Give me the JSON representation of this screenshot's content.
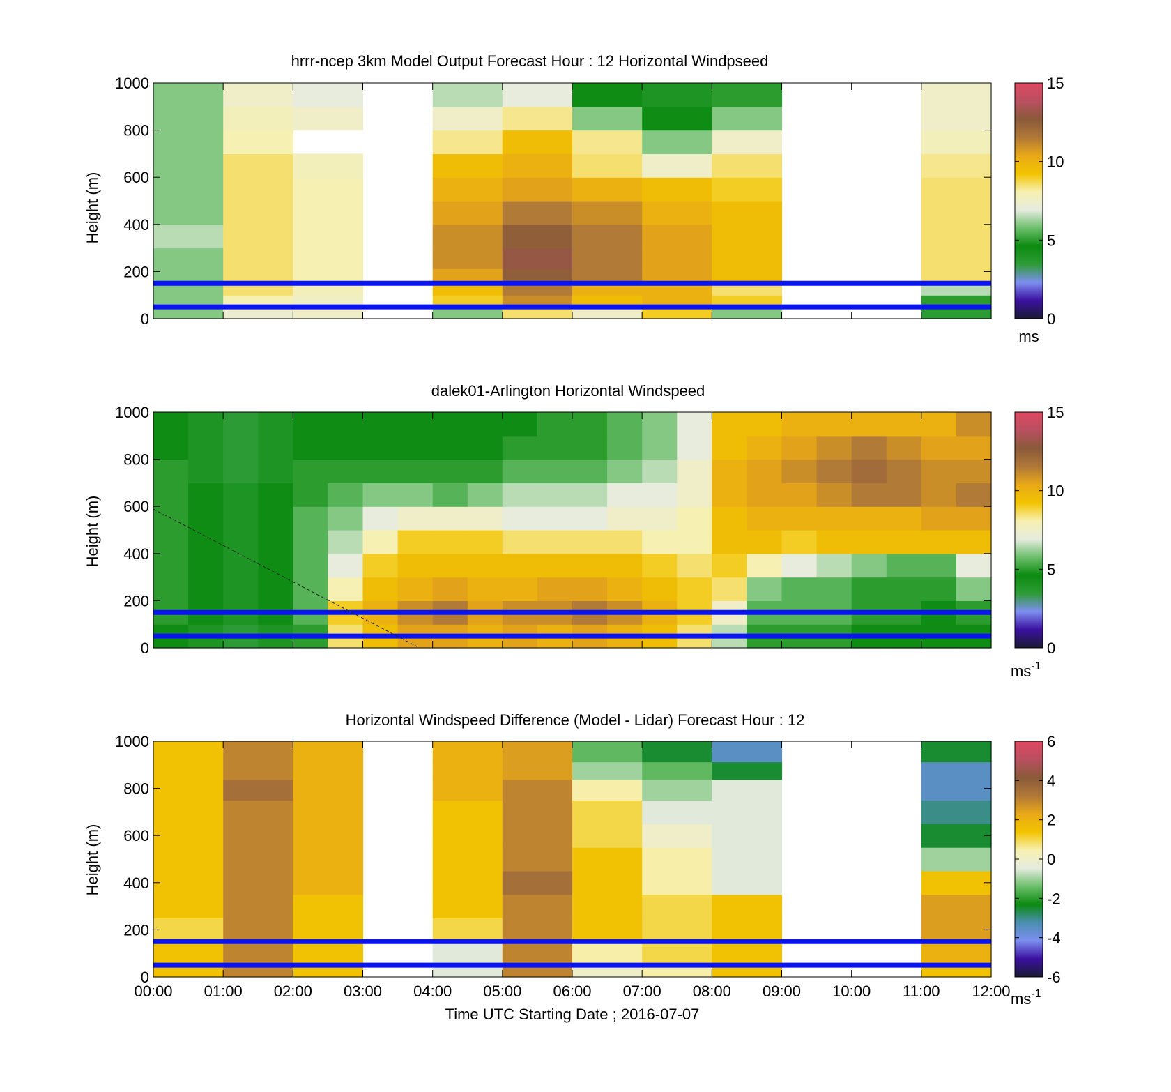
{
  "figure": {
    "xlabel": "Time UTC  Starting Date ; 2016-07-07",
    "x_tick_labels": [
      "00:00",
      "01:00",
      "02:00",
      "03:00",
      "04:00",
      "05:00",
      "06:00",
      "07:00",
      "08:00",
      "09:00",
      "10:00",
      "11:00",
      "12:00"
    ],
    "y_tick_labels": [
      "0",
      "200",
      "400",
      "600",
      "800",
      "1000"
    ],
    "ylabel": "Height (m)",
    "colors": {
      "reference_lines": "#0a14f0",
      "speed_colormap": [
        "#1a1a33",
        "#3a10a0",
        "#7d8ff0",
        "#2e9c36",
        "#0c8a10",
        "#6cbf6c",
        "#e6ecdf",
        "#f7f0b0",
        "#f2c400",
        "#e8a818",
        "#b07838",
        "#8a5a3a",
        "#b85060",
        "#e04860"
      ],
      "diff_colormap": [
        "#1a1a33",
        "#3a10a0",
        "#7d8ff0",
        "#4a8fb0",
        "#0c8a10",
        "#6cbf6c",
        "#e6ecdf",
        "#f7f0b0",
        "#f2c400",
        "#e8a818",
        "#b07838",
        "#8a5a3a",
        "#b85060",
        "#e04860"
      ]
    }
  },
  "chart_data": [
    {
      "type": "heatmap",
      "title": "hrrr-ncep 3km Model Output   Forecast Hour : 12 Horizontal Windpseed",
      "xlabel": "",
      "ylabel": "Height (m)",
      "ylim": [
        0,
        1000
      ],
      "xlim_hours": [
        0,
        12
      ],
      "colorbar": {
        "range": [
          0,
          15
        ],
        "ticks": [
          "0",
          "5",
          "10",
          "15"
        ],
        "unit": "ms"
      },
      "reference_lines_m": [
        50,
        150
      ],
      "x_hours": [
        0.5,
        1.5,
        2.5,
        3.5,
        4.5,
        5.5,
        6.5,
        7.5,
        8.5,
        9.5,
        10.5,
        11.5
      ],
      "heights_m": [
        25,
        75,
        125,
        175,
        250,
        350,
        450,
        550,
        650,
        750,
        850,
        950
      ],
      "values_ms": [
        [
          6.0,
          7.3,
          7.5,
          null,
          6.0,
          8.5,
          7.5,
          9.0,
          6.0,
          null,
          null,
          3.5
        ],
        [
          6.0,
          8.0,
          7.6,
          null,
          9.0,
          11.0,
          9.5,
          10.0,
          9.0,
          null,
          null,
          5.0
        ],
        [
          6.0,
          8.5,
          7.8,
          null,
          9.5,
          11.5,
          10.0,
          10.0,
          8.5,
          null,
          null,
          6.5
        ],
        [
          6.0,
          8.5,
          8.0,
          null,
          10.5,
          12.5,
          11.5,
          10.5,
          9.5,
          null,
          null,
          8.5
        ],
        [
          6.0,
          8.5,
          8.0,
          null,
          11.0,
          13.0,
          11.5,
          10.5,
          9.5,
          null,
          null,
          8.5
        ],
        [
          6.5,
          8.5,
          8.0,
          null,
          11.0,
          12.5,
          11.5,
          10.5,
          9.5,
          null,
          null,
          8.5
        ],
        [
          6.0,
          8.5,
          8.0,
          null,
          10.5,
          11.5,
          11.0,
          10.0,
          9.5,
          null,
          null,
          8.5
        ],
        [
          6.0,
          8.5,
          8.0,
          null,
          10.0,
          10.5,
          10.0,
          9.5,
          9.0,
          null,
          null,
          8.5
        ],
        [
          6.0,
          8.5,
          7.8,
          null,
          9.5,
          10.0,
          8.5,
          7.5,
          8.5,
          null,
          null,
          8.3
        ],
        [
          6.0,
          8.0,
          null,
          null,
          8.3,
          9.5,
          8.3,
          6.0,
          7.5,
          null,
          null,
          7.8
        ],
        [
          6.0,
          7.8,
          7.5,
          null,
          7.5,
          8.3,
          6.0,
          4.5,
          6.0,
          null,
          null,
          7.5
        ],
        [
          6.0,
          7.5,
          7.0,
          null,
          6.5,
          7.0,
          4.5,
          4.0,
          5.0,
          null,
          null,
          7.5
        ]
      ]
    },
    {
      "type": "heatmap",
      "title": "dalek01-Arlington  Horizontal Windspeed",
      "xlabel": "",
      "ylabel": "Height (m)",
      "ylim": [
        0,
        1000
      ],
      "xlim_hours": [
        0,
        12
      ],
      "colorbar": {
        "range": [
          0,
          15
        ],
        "ticks": [
          "0",
          "5",
          "10",
          "15"
        ],
        "unit": "ms",
        "unit_exponent": "-1"
      },
      "reference_lines_m": [
        50,
        150
      ],
      "x_hours": [
        0.25,
        0.75,
        1.25,
        1.75,
        2.25,
        2.75,
        3.25,
        3.75,
        4.25,
        4.75,
        5.25,
        5.75,
        6.25,
        6.75,
        7.25,
        7.75,
        8.25,
        8.75,
        9.25,
        9.75,
        10.25,
        10.75,
        11.25,
        11.75
      ],
      "heights_m": [
        50,
        150,
        250,
        350,
        450,
        550,
        650,
        750,
        850,
        950
      ],
      "values_ms": [
        [
          4.5,
          4.0,
          3.5,
          4.0,
          5.0,
          8.5,
          9.5,
          10.5,
          10.5,
          10.0,
          10.5,
          10.0,
          10.5,
          10.0,
          9.5,
          8.5,
          6.5,
          5.0,
          5.0,
          5.0,
          4.5,
          4.5,
          4.5,
          4.5
        ],
        [
          5.0,
          4.5,
          4.0,
          4.5,
          5.5,
          9.0,
          10.0,
          11.0,
          11.5,
          10.5,
          11.0,
          11.0,
          11.5,
          11.0,
          10.0,
          9.0,
          7.5,
          5.5,
          5.5,
          5.5,
          5.0,
          5.0,
          4.5,
          5.0
        ],
        [
          5.0,
          4.5,
          4.0,
          4.5,
          5.5,
          8.0,
          9.5,
          10.0,
          10.5,
          10.0,
          10.0,
          10.5,
          10.5,
          10.0,
          9.5,
          9.0,
          8.5,
          6.0,
          5.5,
          5.5,
          5.0,
          5.0,
          5.0,
          6.0
        ],
        [
          5.0,
          4.5,
          4.0,
          4.5,
          5.5,
          7.0,
          9.0,
          9.5,
          9.5,
          9.5,
          9.5,
          9.5,
          9.5,
          9.5,
          9.0,
          8.5,
          9.0,
          8.0,
          7.0,
          6.5,
          6.0,
          5.5,
          5.5,
          7.0
        ],
        [
          5.0,
          4.5,
          4.0,
          4.5,
          5.5,
          6.5,
          8.0,
          9.0,
          9.0,
          9.0,
          8.5,
          8.5,
          8.5,
          8.5,
          8.0,
          8.0,
          9.5,
          9.5,
          9.0,
          9.5,
          9.5,
          9.5,
          9.5,
          9.5
        ],
        [
          5.0,
          4.5,
          4.0,
          4.5,
          5.5,
          6.0,
          7.0,
          7.5,
          7.5,
          7.5,
          7.0,
          7.0,
          7.0,
          7.5,
          7.5,
          8.0,
          9.5,
          10.0,
          10.0,
          10.0,
          10.0,
          10.0,
          10.5,
          10.5
        ],
        [
          5.0,
          4.5,
          4.0,
          4.5,
          5.0,
          5.5,
          6.0,
          6.0,
          5.5,
          6.0,
          6.5,
          6.5,
          6.5,
          7.0,
          7.0,
          7.5,
          10.0,
          10.5,
          10.5,
          11.0,
          11.5,
          11.5,
          11.0,
          11.5
        ],
        [
          5.0,
          4.0,
          3.5,
          4.0,
          5.0,
          5.0,
          5.0,
          5.0,
          5.0,
          5.0,
          5.5,
          5.5,
          5.5,
          6.0,
          6.5,
          7.5,
          10.0,
          10.5,
          11.0,
          11.5,
          12.0,
          11.5,
          11.0,
          11.0
        ],
        [
          4.5,
          4.0,
          3.5,
          4.0,
          4.5,
          4.5,
          4.5,
          4.5,
          4.5,
          4.5,
          5.0,
          5.0,
          5.0,
          5.5,
          6.0,
          7.0,
          9.5,
          10.0,
          10.5,
          11.0,
          11.5,
          11.0,
          10.5,
          10.5
        ],
        [
          4.5,
          4.0,
          3.5,
          4.0,
          4.5,
          4.5,
          4.5,
          4.5,
          4.5,
          4.5,
          4.5,
          5.0,
          5.0,
          5.5,
          6.0,
          7.0,
          9.5,
          9.5,
          10.0,
          10.0,
          10.0,
          10.0,
          10.0,
          11.0
        ]
      ]
    },
    {
      "type": "heatmap",
      "title": "Horizontal Windspeed Difference (Model - Lidar) Forecast Hour : 12",
      "xlabel": "Time UTC  Starting Date ; 2016-07-07",
      "ylabel": "Height (m)",
      "ylim": [
        0,
        1000
      ],
      "xlim_hours": [
        0,
        12
      ],
      "colorbar": {
        "range": [
          -6,
          6
        ],
        "ticks": [
          "-6",
          "-4",
          "-2",
          "0",
          "2",
          "4",
          "6"
        ],
        "unit": "ms",
        "unit_exponent": "-1"
      },
      "reference_lines_m": [
        50,
        150
      ],
      "x_hours": [
        0.5,
        1.5,
        2.5,
        3.5,
        4.5,
        5.5,
        6.5,
        7.5,
        8.5,
        9.5,
        10.5,
        11.5
      ],
      "heights_m": [
        25,
        100,
        200,
        300,
        400,
        500,
        600,
        700,
        800,
        875,
        950
      ],
      "values_ms": [
        [
          1.5,
          3.0,
          1.5,
          null,
          -0.5,
          3.0,
          0.0,
          0.5,
          1.5,
          null,
          null,
          1.5
        ],
        [
          1.5,
          3.0,
          1.5,
          null,
          -0.5,
          3.0,
          0.5,
          1.0,
          1.5,
          null,
          null,
          2.0
        ],
        [
          1.0,
          3.0,
          1.5,
          null,
          1.0,
          3.0,
          1.5,
          1.0,
          1.5,
          null,
          null,
          2.5
        ],
        [
          1.5,
          3.0,
          1.5,
          null,
          1.5,
          3.0,
          1.5,
          1.0,
          1.5,
          null,
          null,
          2.5
        ],
        [
          1.5,
          3.0,
          2.0,
          null,
          1.5,
          3.5,
          1.5,
          0.5,
          -0.5,
          null,
          null,
          1.5
        ],
        [
          1.5,
          3.0,
          2.0,
          null,
          1.5,
          3.0,
          1.5,
          0.5,
          -0.5,
          null,
          null,
          -1.0
        ],
        [
          1.5,
          3.0,
          2.0,
          null,
          1.5,
          3.0,
          1.0,
          0.0,
          -0.5,
          null,
          null,
          -2.5
        ],
        [
          1.5,
          3.0,
          2.0,
          null,
          1.5,
          3.0,
          1.0,
          -0.5,
          -0.5,
          null,
          null,
          -3.0
        ],
        [
          1.5,
          3.5,
          2.0,
          null,
          2.0,
          3.0,
          0.5,
          -1.0,
          -0.5,
          null,
          null,
          -3.5
        ],
        [
          1.5,
          3.0,
          2.0,
          null,
          2.0,
          2.5,
          -1.0,
          -1.5,
          -2.5,
          null,
          null,
          -3.5
        ],
        [
          1.5,
          3.0,
          2.0,
          null,
          2.0,
          2.5,
          -1.5,
          -2.5,
          -3.5,
          null,
          null,
          -2.5
        ]
      ]
    }
  ]
}
